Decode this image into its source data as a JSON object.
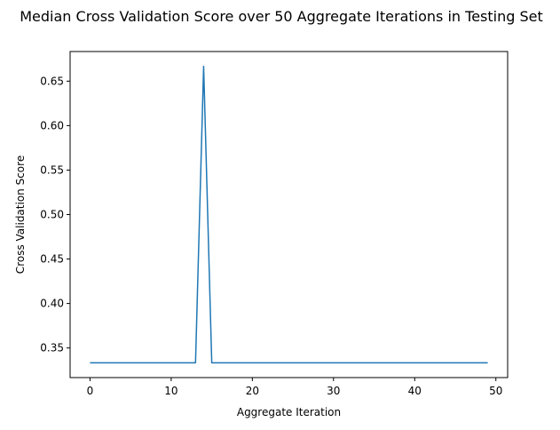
{
  "chart_data": {
    "type": "line",
    "title": "Median Cross Validation Score over 50 Aggregate Iterations in Testing Set",
    "xlabel": "Aggregate Iteration",
    "ylabel": "Cross Validation Score",
    "xlim": [
      -2.45,
      51.45
    ],
    "ylim": [
      0.3167,
      0.6833
    ],
    "xticks": [
      0,
      10,
      20,
      30,
      40,
      50
    ],
    "xtick_labels": [
      "0",
      "10",
      "20",
      "30",
      "40",
      "50"
    ],
    "yticks": [
      0.35,
      0.4,
      0.45,
      0.5,
      0.55,
      0.6,
      0.65
    ],
    "ytick_labels": [
      "0.35",
      "0.40",
      "0.45",
      "0.50",
      "0.55",
      "0.60",
      "0.65"
    ],
    "grid": false,
    "series": [
      {
        "color": "#1f77b4",
        "x": [
          0,
          1,
          2,
          3,
          4,
          5,
          6,
          7,
          8,
          9,
          10,
          11,
          12,
          13,
          14,
          15,
          16,
          17,
          18,
          19,
          20,
          21,
          22,
          23,
          24,
          25,
          26,
          27,
          28,
          29,
          30,
          31,
          32,
          33,
          34,
          35,
          36,
          37,
          38,
          39,
          40,
          41,
          42,
          43,
          44,
          45,
          46,
          47,
          48,
          49
        ],
        "values": [
          0.3333,
          0.3333,
          0.3333,
          0.3333,
          0.3333,
          0.3333,
          0.3333,
          0.3333,
          0.3333,
          0.3333,
          0.3333,
          0.3333,
          0.3333,
          0.3333,
          0.6667,
          0.3333,
          0.3333,
          0.3333,
          0.3333,
          0.3333,
          0.3333,
          0.3333,
          0.3333,
          0.3333,
          0.3333,
          0.3333,
          0.3333,
          0.3333,
          0.3333,
          0.3333,
          0.3333,
          0.3333,
          0.3333,
          0.3333,
          0.3333,
          0.3333,
          0.3333,
          0.3333,
          0.3333,
          0.3333,
          0.3333,
          0.3333,
          0.3333,
          0.3333,
          0.3333,
          0.3333,
          0.3333,
          0.3333,
          0.3333,
          0.3333
        ]
      }
    ]
  }
}
